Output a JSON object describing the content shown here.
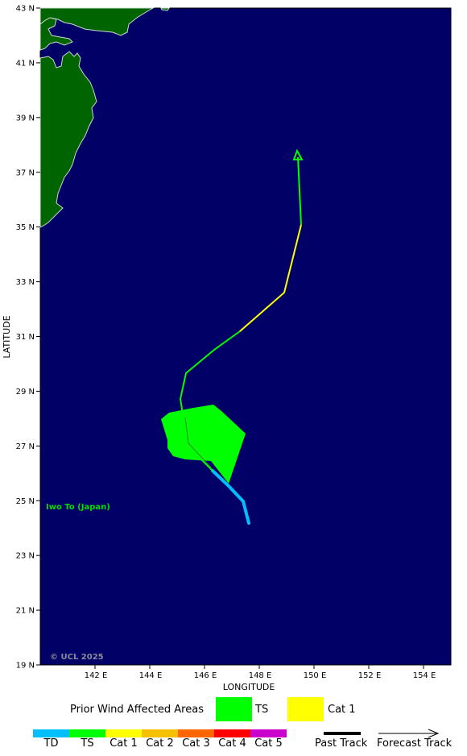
{
  "axes": {
    "latitude_label": "LATITUDE",
    "longitude_label": "LONGITUDE",
    "lat_ticks": [
      "43 N",
      "41 N",
      "39 N",
      "37 N",
      "35 N",
      "33 N",
      "31 N",
      "29 N",
      "27 N",
      "25 N",
      "23 N",
      "21 N",
      "19 N"
    ],
    "lon_ticks": [
      "142 E",
      "144 E",
      "146 E",
      "148 E",
      "150 E",
      "152 E",
      "154 E"
    ]
  },
  "map": {
    "location_label": "Iwo To (Japan)",
    "copyright": "© UCL 2025",
    "ocean_color": "#000066",
    "land_color": "#006400"
  },
  "legend": {
    "areas_title": "Prior Wind Affected Areas",
    "areas": [
      {
        "label": "TS",
        "color": "#00ff00"
      },
      {
        "label": "Cat 1",
        "color": "#ffff00"
      }
    ],
    "scale": [
      {
        "label": "TD",
        "color": "#00bfff"
      },
      {
        "label": "TS",
        "color": "#00ff00"
      },
      {
        "label": "Cat 1",
        "color": "#ffff00"
      },
      {
        "label": "Cat 2",
        "color": "#f5c000"
      },
      {
        "label": "Cat 3",
        "color": "#ff6600"
      },
      {
        "label": "Cat 4",
        "color": "#ff0000"
      },
      {
        "label": "Cat 5",
        "color": "#cc00cc"
      }
    ],
    "past_track": "Past Track",
    "forecast_track": "Forecast Track"
  }
}
